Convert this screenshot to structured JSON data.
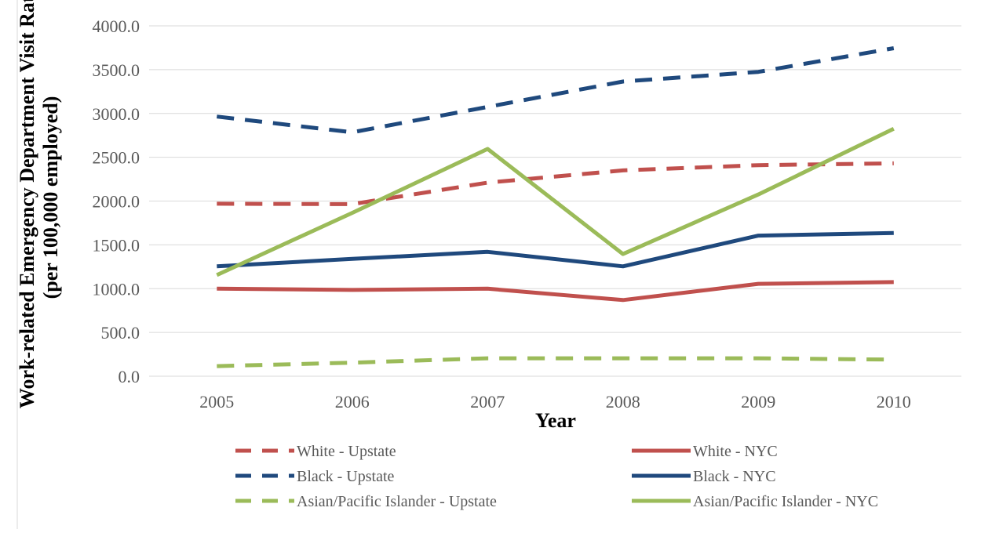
{
  "chart_data": {
    "type": "line",
    "title": "",
    "xlabel": "Year",
    "ylabel_line1": "Work-related Emergency Department Visit Rate",
    "ylabel_line2": "(per 100,000 employed)",
    "categories": [
      "2005",
      "2006",
      "2007",
      "2008",
      "2009",
      "2010"
    ],
    "ylim": [
      0,
      4000
    ],
    "y_ticks": [
      "0.0",
      "500.0",
      "1000.0",
      "1500.0",
      "2000.0",
      "2500.0",
      "3000.0",
      "3500.0",
      "4000.0"
    ],
    "grid": "horizontal",
    "legend_position": "bottom",
    "series": [
      {
        "name": "White - Upstate",
        "color": "#c0504d",
        "dashed": true,
        "values": [
          1970,
          1965,
          2210,
          2350,
          2410,
          2430
        ]
      },
      {
        "name": "White - NYC",
        "color": "#c0504d",
        "dashed": false,
        "values": [
          1000,
          985,
          1000,
          870,
          1055,
          1075
        ]
      },
      {
        "name": "Black - Upstate",
        "color": "#1f497d",
        "dashed": true,
        "values": [
          2965,
          2785,
          3075,
          3365,
          3475,
          3745
        ]
      },
      {
        "name": "Black - NYC",
        "color": "#1f497d",
        "dashed": false,
        "values": [
          1255,
          1340,
          1420,
          1255,
          1605,
          1635
        ]
      },
      {
        "name": "Asian/Pacific Islander - Upstate",
        "color": "#9bbb59",
        "dashed": true,
        "values": [
          115,
          155,
          205,
          205,
          205,
          190
        ]
      },
      {
        "name": "Asian/Pacific Islander - NYC",
        "color": "#9bbb59",
        "dashed": false,
        "values": [
          1155,
          1865,
          2595,
          1395,
          2075,
          2825
        ]
      }
    ]
  }
}
